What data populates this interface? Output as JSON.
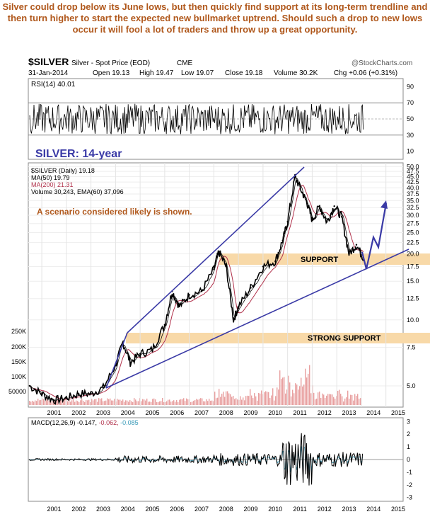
{
  "caption": "Silver could drop below its June lows, but then quickly find support at its long-term trendline and then turn higher to start the expected new bullmarket uptrend. Should such a drop to new lows occur it will fool a lot of traders and throw up a great opportunity.",
  "header": {
    "symbol": "$SILVER",
    "name": "Silver - Spot Price (EOD)",
    "exchange": "CME",
    "watermark": "@StockCharts.com",
    "date": "31-Jan-2014",
    "open": "Open 19.13",
    "high": "High 19.47",
    "low": "Low 19.07",
    "close": "Close 19.18",
    "volume": "Volume 30.2K",
    "change": "Chg +0.06 (+0.31%)",
    "change_arrow": "▲"
  },
  "rsi": {
    "label": "RSI(14) 40.01",
    "ticks": [
      "90",
      "70",
      "50",
      "30",
      "10"
    ]
  },
  "price_panel": {
    "title": "SILVER: 14-year",
    "legend": [
      "$SILVER (Daily) 19.18",
      "MA(50) 19.79",
      "MA(200) 21.31",
      "Volume 30,243, EMA(60) 37,096"
    ],
    "scenario_text": "A scenario considered likely is shown.",
    "support_label": "SUPPORT",
    "strong_support_label": "STRONG SUPPORT",
    "price_ticks": [
      "50.0",
      "47.5",
      "45.0",
      "42.5",
      "40.0",
      "37.5",
      "35.0",
      "32.5",
      "30.0",
      "27.5",
      "25.0",
      "22.5",
      "20.0",
      "17.5",
      "15.0",
      "12.5",
      "10.0",
      "7.5",
      "5.0"
    ],
    "volume_ticks": [
      "250K",
      "200K",
      "150K",
      "100K",
      "50000"
    ]
  },
  "macd": {
    "label": "MACD(12,26,9) -0.147,",
    "signal": "-0.062,",
    "hist": "-0.085",
    "ticks": [
      "3",
      "2",
      "1",
      "0",
      "-1",
      "-2",
      "-3"
    ]
  },
  "x_years": [
    "2001",
    "2002",
    "2003",
    "2004",
    "2005",
    "2006",
    "2007",
    "2008",
    "2009",
    "2010",
    "2011",
    "2012",
    "2013",
    "2014",
    "2015"
  ],
  "colors": {
    "caption": "#b0581c",
    "trend": "#3a3aa6",
    "support": "#f8d9a8",
    "ma50": "#111111",
    "ma200": "#b0304a",
    "volume": "#e8a0a0",
    "macd": "#000000",
    "signal": "#3a9ab8"
  },
  "chart_data": {
    "type": "line",
    "title": "SILVER: 14-year",
    "price_scale": "log",
    "ylim": [
      4.0,
      52.0
    ],
    "x": [
      2000.5,
      2001.0,
      2001.5,
      2002.0,
      2002.5,
      2003.0,
      2003.5,
      2004.0,
      2004.3,
      2004.6,
      2005.0,
      2005.5,
      2006.0,
      2006.3,
      2006.6,
      2007.0,
      2007.5,
      2008.0,
      2008.2,
      2008.5,
      2008.8,
      2009.0,
      2009.5,
      2010.0,
      2010.5,
      2010.8,
      2011.0,
      2011.3,
      2011.6,
      2011.8,
      2012.0,
      2012.3,
      2012.6,
      2012.9,
      2013.2,
      2013.5,
      2013.8,
      2014.08
    ],
    "series": [
      {
        "name": "$SILVER (Daily)",
        "values": [
          5.0,
          4.6,
          4.3,
          4.4,
          4.6,
          4.6,
          4.9,
          6.2,
          7.9,
          6.4,
          7.0,
          7.3,
          9.5,
          13.5,
          11.5,
          13.0,
          13.5,
          17.0,
          20.5,
          17.5,
          10.0,
          11.5,
          14.0,
          17.5,
          18.5,
          23.0,
          28.0,
          45.0,
          38.0,
          34.0,
          28.5,
          33.0,
          28.0,
          33.0,
          29.5,
          20.0,
          22.0,
          19.18
        ]
      }
    ],
    "annotations": [
      "SUPPORT",
      "STRONG SUPPORT",
      "A scenario considered likely is shown."
    ]
  }
}
